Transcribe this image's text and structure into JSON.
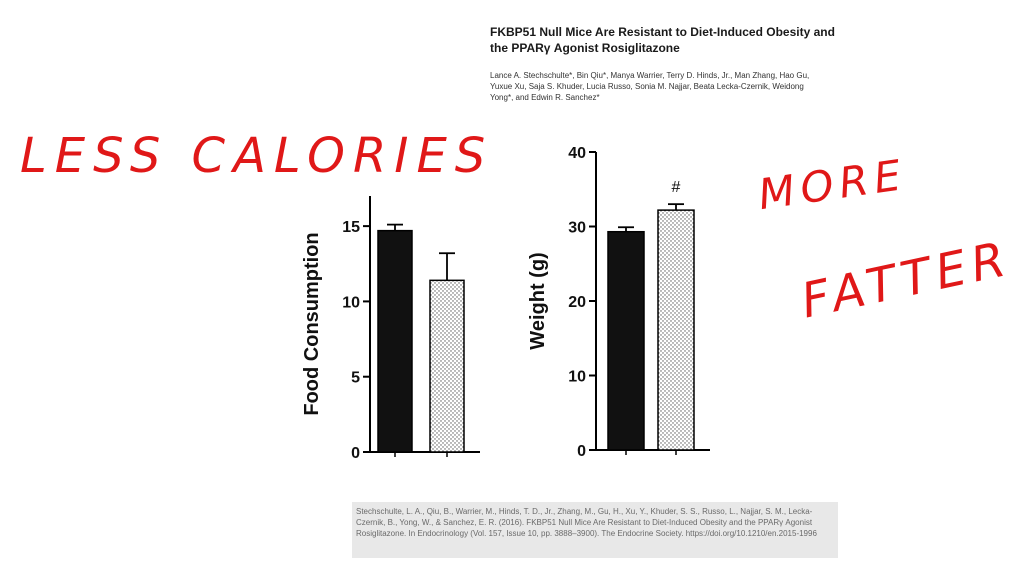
{
  "paper": {
    "title": "FKBP51 Null Mice Are Resistant to Diet-Induced Obesity and the PPARγ Agonist Rosiglitazone",
    "authors": "Lance A. Stechschulte*, Bin Qiu*, Manya Warrier, Terry D. Hinds, Jr., Man Zhang, Hao Gu, Yuxue Xu, Saja S. Khuder, Lucia Russo, Sonia M. Najjar, Beata Lecka-Czernik, Weidong Yong*, and Edwin R. Sanchez*"
  },
  "annotations": {
    "left": "LESS CALORIES",
    "right_line1": "MORE",
    "right_line2": "FATTER"
  },
  "citation": "Stechschulte, L. A., Qiu, B., Warrier, M., Hinds, T. D., Jr., Zhang, M., Gu, H., Xu, Y., Khuder, S. S., Russo, L., Najjar, S. M., Lecka-Czernik, B., Yong, W., & Sanchez, E. R. (2016). FKBP51 Null Mice Are Resistant to Diet-Induced Obesity and the PPARγ Agonist Rosiglitazone. In Endocrinology (Vol. 157, Issue 10, pp. 3888–3900). The Endocrine Society. https://doi.org/10.1210/en.2015-1996",
  "colors": {
    "annotation": "#e01818",
    "bar_dark": "#111111",
    "bar_dotted": "#ffffff"
  },
  "chart_data": [
    {
      "type": "bar",
      "ylabel": "Food Consumption",
      "ylim": [
        0,
        17
      ],
      "yticks": [
        0,
        5,
        10,
        15
      ],
      "categories": [
        "",
        ""
      ],
      "values": [
        14.7,
        11.4
      ],
      "errors": [
        0.4,
        1.8
      ],
      "fills": [
        "solid",
        "dotted"
      ],
      "significance": [
        "",
        ""
      ]
    },
    {
      "type": "bar",
      "ylabel": "Weight (g)",
      "ylim": [
        0,
        40
      ],
      "yticks": [
        0,
        10,
        20,
        30,
        40
      ],
      "categories": [
        "",
        ""
      ],
      "values": [
        29.3,
        32.2
      ],
      "errors": [
        0.6,
        0.8
      ],
      "fills": [
        "solid",
        "dotted"
      ],
      "significance": [
        "",
        "#"
      ]
    }
  ]
}
